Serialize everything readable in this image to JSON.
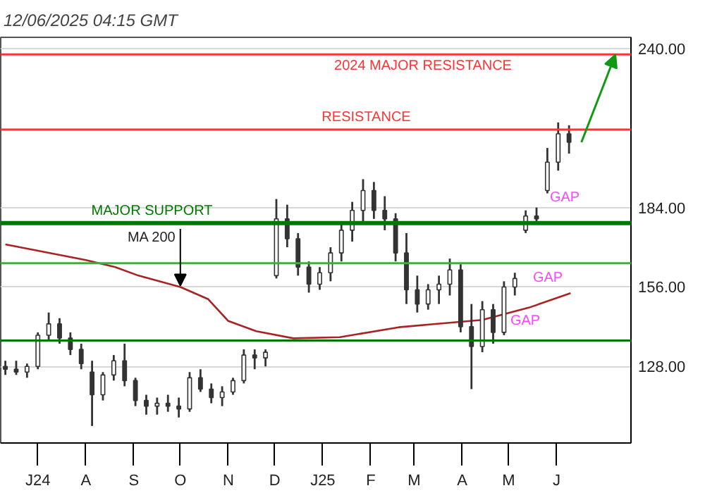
{
  "chart_data": {
    "type": "candlestick",
    "title": "12/06/2025 04:15 GMT",
    "x": [
      "2024-06-10",
      "2024-06-17",
      "2024-06-24",
      "2024-07-01",
      "2024-07-08",
      "2024-07-15",
      "2024-07-22",
      "2024-07-29",
      "2024-08-05",
      "2024-08-12",
      "2024-08-19",
      "2024-08-26",
      "2024-09-02",
      "2024-09-09",
      "2024-09-16",
      "2024-09-23",
      "2024-09-30",
      "2024-10-07",
      "2024-10-14",
      "2024-10-21",
      "2024-10-28",
      "2024-11-04",
      "2024-11-11",
      "2024-11-18",
      "2024-11-25",
      "2024-12-02",
      "2024-12-09",
      "2024-12-16",
      "2024-12-23",
      "2024-12-30",
      "2025-01-06",
      "2025-01-13",
      "2025-01-20",
      "2025-01-27",
      "2025-02-03",
      "2025-02-10",
      "2025-02-17",
      "2025-02-24",
      "2025-03-03",
      "2025-03-10",
      "2025-03-17",
      "2025-03-24",
      "2025-03-31",
      "2025-04-07",
      "2025-04-14",
      "2025-04-21",
      "2025-04-28",
      "2025-05-05",
      "2025-05-12",
      "2025-05-19",
      "2025-05-26",
      "2025-06-02",
      "2025-06-09"
    ],
    "ohlc": [
      [
        128,
        130,
        125,
        127
      ],
      [
        127,
        130,
        125,
        126
      ],
      [
        126,
        129,
        124,
        128
      ],
      [
        128,
        140,
        127,
        139
      ],
      [
        139,
        147,
        137,
        143
      ],
      [
        143,
        145,
        136,
        138
      ],
      [
        138,
        140,
        132,
        134
      ],
      [
        134,
        136,
        127,
        129
      ],
      [
        126,
        130,
        107,
        118
      ],
      [
        118,
        126,
        116,
        125
      ],
      [
        125,
        132,
        123,
        130
      ],
      [
        130,
        136,
        121,
        123
      ],
      [
        123,
        124,
        114,
        116
      ],
      [
        116,
        118,
        111,
        114
      ],
      [
        114,
        117,
        111,
        115
      ],
      [
        115,
        118,
        112,
        114
      ],
      [
        114,
        117,
        110,
        113
      ],
      [
        113,
        126,
        112,
        124
      ],
      [
        124,
        127,
        119,
        120
      ],
      [
        120,
        122,
        115,
        117
      ],
      [
        117,
        121,
        114,
        119
      ],
      [
        119,
        124,
        118,
        123
      ],
      [
        123,
        134,
        122,
        132
      ],
      [
        132,
        134,
        127,
        131
      ],
      [
        131,
        134,
        128,
        133
      ],
      [
        160,
        187,
        159,
        180
      ],
      [
        180,
        185,
        170,
        173
      ],
      [
        173,
        175,
        160,
        163
      ],
      [
        163,
        165,
        154,
        157
      ],
      [
        157,
        163,
        155,
        161
      ],
      [
        161,
        170,
        158,
        168
      ],
      [
        168,
        178,
        165,
        176
      ],
      [
        176,
        186,
        172,
        183
      ],
      [
        183,
        194,
        178,
        190
      ],
      [
        190,
        193,
        180,
        183
      ],
      [
        183,
        188,
        176,
        180
      ],
      [
        180,
        182,
        165,
        168
      ],
      [
        168,
        175,
        150,
        155
      ],
      [
        155,
        160,
        147,
        150
      ],
      [
        150,
        157,
        148,
        155
      ],
      [
        155,
        160,
        150,
        157
      ],
      [
        157,
        166,
        153,
        162
      ],
      [
        162,
        164,
        140,
        142
      ],
      [
        142,
        150,
        120,
        135
      ],
      [
        135,
        151,
        133,
        148
      ],
      [
        148,
        150,
        136,
        140
      ],
      [
        140,
        158,
        139,
        156
      ],
      [
        156,
        161,
        153,
        159
      ],
      [
        176,
        183,
        175,
        181
      ],
      [
        181,
        184,
        178,
        180
      ],
      [
        190,
        205,
        189,
        200
      ],
      [
        200,
        214,
        197,
        210
      ],
      [
        210,
        213,
        203,
        207
      ]
    ],
    "color": "#333333",
    "series": [
      {
        "type": "line",
        "color": "#aa2222",
        "x": [
          "2024-06-10",
          "2024-08-01",
          "2024-08-20",
          "2024-09-04",
          "2024-10-01",
          "2024-10-19",
          "2024-11-01",
          "2024-11-19",
          "2024-12-13",
          "2025-01-12",
          "2025-02-19",
          "2025-03-16",
          "2025-04-14",
          "2025-05-14",
          "2025-06-10"
        ],
        "values": [
          171,
          165.5,
          163,
          160,
          156,
          151.7,
          144,
          140.4,
          137.9,
          138.3,
          141.8,
          143,
          144.4,
          148.7,
          153.8
        ]
      }
    ],
    "xlim": [
      "2024-06-07",
      "2025-07-19"
    ],
    "ylim": [
      101,
      244
    ],
    "xticks": [
      {
        "value": "2024-07-01",
        "label": "J24"
      },
      {
        "value": "2024-08-01",
        "label": "A"
      },
      {
        "value": "2024-09-01",
        "label": "S"
      },
      {
        "value": "2024-10-01",
        "label": "O"
      },
      {
        "value": "2024-11-01",
        "label": "N"
      },
      {
        "value": "2024-12-01",
        "label": "D"
      },
      {
        "value": "2025-01-01",
        "label": "J25"
      },
      {
        "value": "2025-02-01",
        "label": "F"
      },
      {
        "value": "2025-03-01",
        "label": "M"
      },
      {
        "value": "2025-04-01",
        "label": "A"
      },
      {
        "value": "2025-05-01",
        "label": "M"
      },
      {
        "value": "2025-06-01",
        "label": "J"
      }
    ],
    "yticks": [
      {
        "value": 128,
        "label": "128.00"
      },
      {
        "value": 156,
        "label": "156.00"
      },
      {
        "value": 184,
        "label": "184.00"
      },
      {
        "value": 240,
        "label": "240.00"
      }
    ],
    "grid": "y",
    "ref_lines": [
      {
        "axis": "y",
        "value": 238,
        "label": "2024 MAJOR RESISTANCE",
        "color": "#ff3333"
      },
      {
        "axis": "y",
        "value": 211.5,
        "label": "RESISTANCE",
        "color": "#ff3333"
      },
      {
        "axis": "y",
        "value": 178.5,
        "label": "MAJOR SUPPORT",
        "color": "#007700"
      },
      {
        "axis": "y",
        "value": 164.4,
        "color": "#44aa44"
      },
      {
        "axis": "y",
        "value": 137.1,
        "color": "#007700"
      }
    ],
    "annotations": [
      {
        "text": "MA 200",
        "x": "2024-10-01",
        "y": 156.5
      },
      "GAP",
      "GAP",
      "GAP"
    ]
  }
}
